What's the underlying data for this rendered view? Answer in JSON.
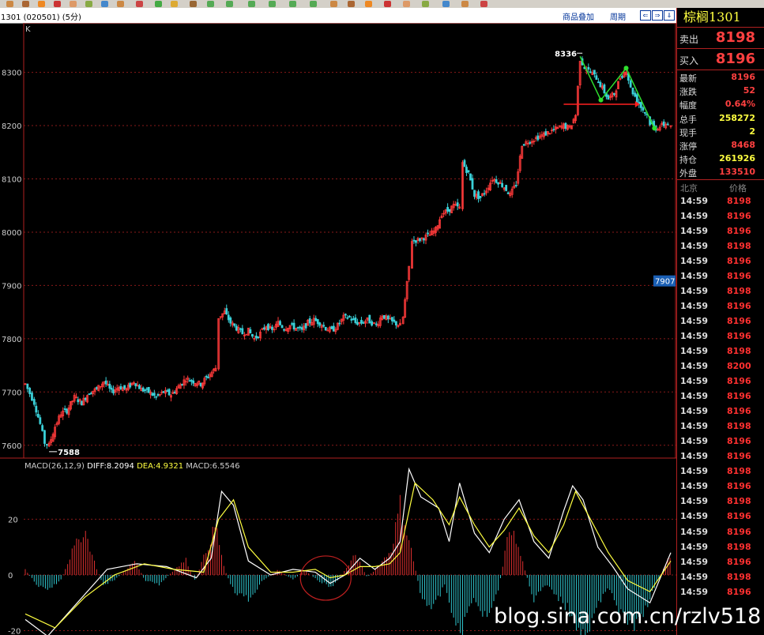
{
  "header": {
    "code": "1301 (020501) (5分)",
    "overlay_link": "商品叠加",
    "period_link": "周期",
    "nav": [
      "⇐",
      "⇒",
      "⇓"
    ]
  },
  "panel": {
    "title": "棕榈1301",
    "sell_label": "卖出",
    "sell_price": "8198",
    "buy_label": "买入",
    "buy_price": "8196",
    "quotes": [
      {
        "label": "最新",
        "value": "8196",
        "color": "#ff4040"
      },
      {
        "label": "涨跌",
        "value": "52",
        "color": "#ff4040"
      },
      {
        "label": "幅度",
        "value": "0.64%",
        "color": "#ff4040"
      },
      {
        "label": "总手",
        "value": "258272",
        "color": "#ffff40"
      },
      {
        "label": "现手",
        "value": "2",
        "color": "#ffff40"
      },
      {
        "label": "涨停",
        "value": "8468",
        "color": "#ff4040"
      },
      {
        "label": "持仓",
        "value": "261926",
        "color": "#ffff40"
      },
      {
        "label": "外盘",
        "value": "133510",
        "color": "#ff4040"
      }
    ],
    "ticks_header": {
      "time": "北京",
      "price": "价格"
    },
    "ticks": [
      [
        "14:59",
        "8198"
      ],
      [
        "14:59",
        "8196"
      ],
      [
        "14:59",
        "8196"
      ],
      [
        "14:59",
        "8198"
      ],
      [
        "14:59",
        "8196"
      ],
      [
        "14:59",
        "8196"
      ],
      [
        "14:59",
        "8198"
      ],
      [
        "14:59",
        "8196"
      ],
      [
        "14:59",
        "8196"
      ],
      [
        "14:59",
        "8196"
      ],
      [
        "14:59",
        "8198"
      ],
      [
        "14:59",
        "8200"
      ],
      [
        "14:59",
        "8196"
      ],
      [
        "14:59",
        "8196"
      ],
      [
        "14:59",
        "8196"
      ],
      [
        "14:59",
        "8198"
      ],
      [
        "14:59",
        "8196"
      ],
      [
        "14:59",
        "8196"
      ],
      [
        "14:59",
        "8198"
      ],
      [
        "14:59",
        "8196"
      ],
      [
        "14:59",
        "8198"
      ],
      [
        "14:59",
        "8196"
      ],
      [
        "14:59",
        "8196"
      ],
      [
        "14:59",
        "8198"
      ],
      [
        "14:59",
        "8196"
      ],
      [
        "14:59",
        "8198"
      ],
      [
        "14:59",
        "8196"
      ]
    ]
  },
  "watermark": "blog.sina.com.cn/rzlv518",
  "chart_data": [
    {
      "type": "candlestick",
      "corner_label": "K",
      "ylim": [
        7570,
        8375
      ],
      "yticks": [
        7600,
        7700,
        7800,
        7900,
        8000,
        8100,
        8200,
        8300
      ],
      "annotations": {
        "high": "8336",
        "low": "7588",
        "price_tag": "7907"
      },
      "close_path": [
        [
          0,
          7715
        ],
        [
          6,
          7680
        ],
        [
          10,
          7640
        ],
        [
          13,
          7605
        ],
        [
          16,
          7600
        ],
        [
          20,
          7635
        ],
        [
          24,
          7660
        ],
        [
          28,
          7665
        ],
        [
          33,
          7690
        ],
        [
          38,
          7680
        ],
        [
          43,
          7700
        ],
        [
          48,
          7705
        ],
        [
          53,
          7720
        ],
        [
          58,
          7700
        ],
        [
          63,
          7710
        ],
        [
          68,
          7705
        ],
        [
          73,
          7720
        ],
        [
          78,
          7705
        ],
        [
          83,
          7700
        ],
        [
          88,
          7690
        ],
        [
          93,
          7700
        ],
        [
          98,
          7695
        ],
        [
          103,
          7710
        ],
        [
          108,
          7725
        ],
        [
          113,
          7720
        ],
        [
          118,
          7715
        ],
        [
          123,
          7730
        ],
        [
          128,
          7745
        ],
        [
          130,
          7840
        ],
        [
          134,
          7850
        ],
        [
          138,
          7830
        ],
        [
          142,
          7820
        ],
        [
          146,
          7810
        ],
        [
          150,
          7815
        ],
        [
          154,
          7800
        ],
        [
          158,
          7810
        ],
        [
          162,
          7825
        ],
        [
          166,
          7815
        ],
        [
          170,
          7830
        ],
        [
          174,
          7820
        ],
        [
          178,
          7825
        ],
        [
          182,
          7820
        ],
        [
          186,
          7815
        ],
        [
          190,
          7830
        ],
        [
          194,
          7835
        ],
        [
          198,
          7830
        ],
        [
          202,
          7820
        ],
        [
          206,
          7815
        ],
        [
          210,
          7825
        ],
        [
          214,
          7840
        ],
        [
          218,
          7840
        ],
        [
          222,
          7830
        ],
        [
          226,
          7830
        ],
        [
          230,
          7835
        ],
        [
          236,
          7825
        ],
        [
          240,
          7845
        ],
        [
          244,
          7835
        ],
        [
          248,
          7830
        ],
        [
          252,
          7825
        ],
        [
          254,
          7840
        ],
        [
          258,
          7935
        ],
        [
          260,
          7985
        ],
        [
          264,
          7985
        ],
        [
          268,
          7990
        ],
        [
          272,
          7995
        ],
        [
          276,
          8005
        ],
        [
          280,
          8035
        ],
        [
          284,
          8040
        ],
        [
          288,
          8050
        ],
        [
          292,
          8045
        ],
        [
          294,
          8130
        ],
        [
          298,
          8110
        ],
        [
          302,
          8070
        ],
        [
          306,
          8065
        ],
        [
          310,
          8080
        ],
        [
          314,
          8100
        ],
        [
          318,
          8095
        ],
        [
          322,
          8085
        ],
        [
          326,
          8070
        ],
        [
          330,
          8090
        ],
        [
          334,
          8165
        ],
        [
          338,
          8170
        ],
        [
          342,
          8175
        ],
        [
          346,
          8180
        ],
        [
          350,
          8185
        ],
        [
          354,
          8190
        ],
        [
          358,
          8195
        ],
        [
          362,
          8200
        ],
        [
          366,
          8195
        ],
        [
          370,
          8220
        ],
        [
          373,
          8325
        ],
        [
          376,
          8310
        ],
        [
          380,
          8300
        ],
        [
          384,
          8290
        ],
        [
          388,
          8270
        ],
        [
          392,
          8250
        ],
        [
          396,
          8260
        ],
        [
          400,
          8290
        ],
        [
          404,
          8305
        ],
        [
          407,
          8270
        ],
        [
          410,
          8255
        ],
        [
          414,
          8235
        ],
        [
          418,
          8220
        ],
        [
          420,
          8205
        ],
        [
          424,
          8195
        ],
        [
          428,
          8200
        ],
        [
          432,
          8205
        ],
        [
          434,
          8196
        ]
      ],
      "lines": {
        "zigzag_points": [
          [
            373,
            8330
          ],
          [
            387,
            8248
          ],
          [
            404,
            8308
          ],
          [
            423,
            8195
          ]
        ],
        "arrow_level": 8240
      }
    },
    {
      "type": "bar",
      "title": "MACD(26,12,9)",
      "legend": [
        {
          "name": "DIFF",
          "value": "8.2094",
          "color": "#ffffff"
        },
        {
          "name": "DEA",
          "value": "4.9321",
          "color": "#ffff40"
        },
        {
          "name": "MACD",
          "value": "6.5546",
          "color": "#d0d0d0"
        }
      ],
      "ylim": [
        -21,
        36
      ],
      "yticks": [
        -20,
        0,
        20
      ],
      "series": [
        {
          "name": "DIFF",
          "values": [
            [
              0,
              -16
            ],
            [
              15,
              -22
            ],
            [
              35,
              -10
            ],
            [
              55,
              2
            ],
            [
              75,
              4
            ],
            [
              95,
              3
            ],
            [
              115,
              -1
            ],
            [
              125,
              6
            ],
            [
              132,
              30
            ],
            [
              140,
              25
            ],
            [
              150,
              5
            ],
            [
              165,
              0
            ],
            [
              180,
              2
            ],
            [
              195,
              1
            ],
            [
              205,
              -3
            ],
            [
              215,
              0
            ],
            [
              225,
              6
            ],
            [
              235,
              2
            ],
            [
              245,
              6
            ],
            [
              252,
              12
            ],
            [
              258,
              38
            ],
            [
              266,
              28
            ],
            [
              278,
              24
            ],
            [
              285,
              12
            ],
            [
              292,
              33
            ],
            [
              302,
              15
            ],
            [
              312,
              8
            ],
            [
              322,
              20
            ],
            [
              332,
              27
            ],
            [
              342,
              12
            ],
            [
              352,
              6
            ],
            [
              362,
              23
            ],
            [
              368,
              32
            ],
            [
              375,
              27
            ],
            [
              385,
              10
            ],
            [
              395,
              3
            ],
            [
              405,
              -5
            ],
            [
              420,
              -10
            ],
            [
              434,
              8
            ]
          ]
        },
        {
          "name": "DEA",
          "values": [
            [
              0,
              -14
            ],
            [
              20,
              -19
            ],
            [
              40,
              -8
            ],
            [
              60,
              0
            ],
            [
              80,
              4
            ],
            [
              100,
              2
            ],
            [
              120,
              1
            ],
            [
              130,
              20
            ],
            [
              140,
              27
            ],
            [
              150,
              10
            ],
            [
              165,
              1
            ],
            [
              180,
              1
            ],
            [
              195,
              2
            ],
            [
              205,
              -1
            ],
            [
              215,
              0
            ],
            [
              225,
              3
            ],
            [
              235,
              3
            ],
            [
              245,
              4
            ],
            [
              252,
              8
            ],
            [
              262,
              33
            ],
            [
              274,
              27
            ],
            [
              285,
              18
            ],
            [
              292,
              28
            ],
            [
              302,
              18
            ],
            [
              312,
              10
            ],
            [
              322,
              16
            ],
            [
              332,
              24
            ],
            [
              342,
              14
            ],
            [
              352,
              8
            ],
            [
              362,
              18
            ],
            [
              370,
              30
            ],
            [
              380,
              20
            ],
            [
              392,
              8
            ],
            [
              405,
              -2
            ],
            [
              420,
              -6
            ],
            [
              434,
              5
            ]
          ]
        }
      ],
      "macd_bar_envelope": [
        [
          0,
          2
        ],
        [
          8,
          -4
        ],
        [
          16,
          -6
        ],
        [
          24,
          -2
        ],
        [
          32,
          10
        ],
        [
          40,
          18
        ],
        [
          46,
          6
        ],
        [
          52,
          -4
        ],
        [
          60,
          -2
        ],
        [
          68,
          2
        ],
        [
          74,
          6
        ],
        [
          80,
          -2
        ],
        [
          90,
          -4
        ],
        [
          100,
          2
        ],
        [
          108,
          6
        ],
        [
          114,
          -2
        ],
        [
          122,
          10
        ],
        [
          128,
          20
        ],
        [
          134,
          2
        ],
        [
          140,
          -6
        ],
        [
          150,
          -10
        ],
        [
          160,
          -2
        ],
        [
          170,
          2
        ],
        [
          180,
          -2
        ],
        [
          188,
          2
        ],
        [
          196,
          -2
        ],
        [
          206,
          -5
        ],
        [
          214,
          1
        ],
        [
          222,
          8
        ],
        [
          230,
          -1
        ],
        [
          238,
          4
        ],
        [
          246,
          10
        ],
        [
          252,
          28
        ],
        [
          258,
          14
        ],
        [
          266,
          -8
        ],
        [
          274,
          -14
        ],
        [
          282,
          -4
        ],
        [
          292,
          -25
        ],
        [
          300,
          -10
        ],
        [
          310,
          -16
        ],
        [
          318,
          -6
        ],
        [
          326,
          20
        ],
        [
          334,
          6
        ],
        [
          342,
          -10
        ],
        [
          350,
          -4
        ],
        [
          360,
          -10
        ],
        [
          368,
          -16
        ],
        [
          376,
          -26
        ],
        [
          384,
          -14
        ],
        [
          392,
          -4
        ],
        [
          402,
          -18
        ],
        [
          412,
          -20
        ],
        [
          424,
          -4
        ],
        [
          432,
          6
        ]
      ]
    }
  ]
}
